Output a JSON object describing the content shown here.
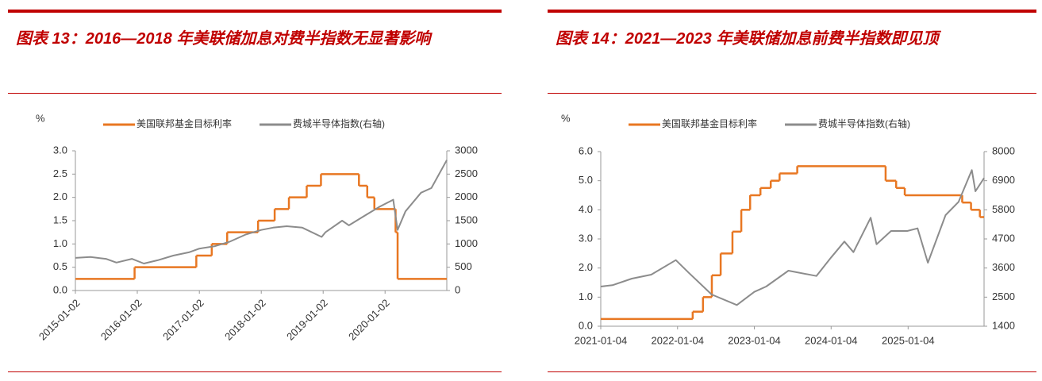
{
  "chart_data": [
    {
      "type": "line",
      "title": "图表 13：2016—2018 年美联储加息对费半指数无显著影响",
      "y_label": "%",
      "rotate_xticks": true,
      "xlim": [
        "2015-01-02",
        "2020-12-31"
      ],
      "xticks": [
        "2015-01-02",
        "2016-01-02",
        "2017-01-02",
        "2018-01-02",
        "2019-01-02",
        "2020-01-02"
      ],
      "ylim": [
        0,
        3
      ],
      "yticks": [
        {
          "value": 0,
          "label": "0.0"
        },
        0.5,
        {
          "value": 1,
          "label": "1.0"
        },
        1.5,
        {
          "value": 2,
          "label": "2.0"
        },
        2.5,
        {
          "value": 3,
          "label": "3.0"
        }
      ],
      "y2lim": [
        0,
        3000
      ],
      "y2ticks": [
        0,
        500,
        1000,
        1500,
        2000,
        2500,
        3000
      ],
      "series": [
        {
          "name": "美国联邦基金目标利率",
          "color": "#e87722",
          "step": true,
          "x": [
            "2015-01-02",
            "2015-12-17",
            "2016-12-15",
            "2017-03-16",
            "2017-06-15",
            "2017-12-14",
            "2018-03-22",
            "2018-06-14",
            "2018-09-27",
            "2018-12-20",
            "2019-08-01",
            "2019-09-19",
            "2019-10-31",
            "2020-03-04",
            "2020-03-16"
          ],
          "values": [
            0.25,
            0.5,
            0.75,
            1.0,
            1.25,
            1.5,
            1.75,
            2.0,
            2.25,
            2.5,
            2.25,
            2.0,
            1.75,
            1.25,
            0.25
          ]
        },
        {
          "name": "费城半导体指数(右轴)",
          "color": "#8c8c8c",
          "axis": "y2",
          "x": [
            "2015-01-02",
            "2015-04-01",
            "2015-07-01",
            "2015-09-01",
            "2015-12-01",
            "2016-02-10",
            "2016-05-01",
            "2016-08-01",
            "2016-11-01",
            "2017-01-02",
            "2017-04-01",
            "2017-07-01",
            "2017-10-01",
            "2018-01-02",
            "2018-03-12",
            "2018-06-01",
            "2018-09-01",
            "2018-12-24",
            "2019-01-15",
            "2019-04-24",
            "2019-06-03",
            "2019-09-01",
            "2019-12-01",
            "2020-02-19",
            "2020-03-16",
            "2020-05-01",
            "2020-08-01",
            "2020-10-01",
            "2020-12-31"
          ],
          "values": [
            700,
            720,
            680,
            600,
            680,
            580,
            650,
            750,
            820,
            900,
            950,
            1050,
            1200,
            1300,
            1350,
            1380,
            1350,
            1150,
            1250,
            1500,
            1400,
            1600,
            1800,
            1950,
            1300,
            1700,
            2100,
            2200,
            2800
          ]
        }
      ]
    },
    {
      "type": "line",
      "title": "图表 14：2021—2023 年美联储加息前费半指数即见顶",
      "y_label": "%",
      "rotate_xticks": false,
      "xlim": [
        "2021-01-04",
        "2025-12-31"
      ],
      "xticks": [
        "2021-01-04",
        "2022-01-04",
        "2023-01-04",
        "2024-01-04",
        "2025-01-04"
      ],
      "ylim": [
        0,
        6
      ],
      "yticks": [
        {
          "value": 0,
          "label": "0.0"
        },
        {
          "value": 1,
          "label": "1.0"
        },
        {
          "value": 2,
          "label": "2.0"
        },
        {
          "value": 3,
          "label": "3.0"
        },
        {
          "value": 4,
          "label": "4.0"
        },
        {
          "value": 5,
          "label": "5.0"
        },
        {
          "value": 6,
          "label": "6.0"
        }
      ],
      "y2lim": [
        1400,
        8000
      ],
      "y2ticks": [
        1400,
        2500,
        3600,
        4700,
        5800,
        6900,
        8000
      ],
      "series": [
        {
          "name": "美国联邦基金目标利率",
          "color": "#e87722",
          "step": true,
          "x": [
            "2021-01-04",
            "2022-03-17",
            "2022-05-05",
            "2022-06-16",
            "2022-07-28",
            "2022-09-22",
            "2022-11-03",
            "2022-12-15",
            "2023-02-02",
            "2023-03-23",
            "2023-05-04",
            "2023-07-27",
            "2024-09-19",
            "2024-11-08",
            "2024-12-19",
            "2025-09-18",
            "2025-10-30",
            "2025-12-11"
          ],
          "values": [
            0.25,
            0.5,
            1.0,
            1.75,
            2.5,
            3.25,
            4.0,
            4.5,
            4.75,
            5.0,
            5.25,
            5.5,
            5.0,
            4.75,
            4.5,
            4.25,
            4.0,
            3.75
          ]
        },
        {
          "name": "费城半导体指数(右轴)",
          "color": "#8c8c8c",
          "axis": "y2",
          "x": [
            "2021-01-04",
            "2021-03-01",
            "2021-06-01",
            "2021-09-01",
            "2021-12-27",
            "2022-03-01",
            "2022-06-15",
            "2022-10-13",
            "2023-01-04",
            "2023-03-01",
            "2023-06-15",
            "2023-10-26",
            "2024-01-04",
            "2024-03-07",
            "2024-04-19",
            "2024-07-10",
            "2024-08-07",
            "2024-10-15",
            "2024-12-31",
            "2025-02-18",
            "2025-04-08",
            "2025-07-01",
            "2025-09-01",
            "2025-11-03",
            "2025-11-20",
            "2025-12-31"
          ],
          "values": [
            2900,
            2950,
            3200,
            3350,
            3900,
            3400,
            2600,
            2200,
            2700,
            2900,
            3500,
            3300,
            4000,
            4600,
            4200,
            5500,
            4500,
            5000,
            5000,
            5100,
            3800,
            5600,
            6100,
            7300,
            6500,
            7000
          ]
        }
      ]
    }
  ]
}
